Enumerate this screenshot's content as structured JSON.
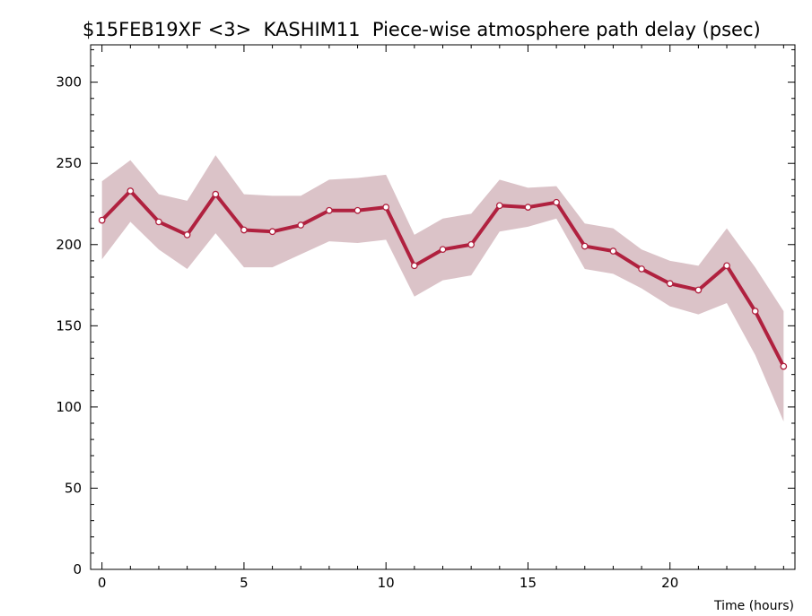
{
  "chart_data": {
    "type": "line",
    "title": "$15FEB19XF <3>  KASHIM11  Piece-wise atmosphere path delay (psec)",
    "xlabel": "Time (hours)",
    "ylabel": "",
    "xlim": [
      -0.4,
      24.4
    ],
    "ylim": [
      0,
      323
    ],
    "x_ticks": [
      0,
      5,
      10,
      15,
      20
    ],
    "y_ticks": [
      0,
      50,
      100,
      150,
      200,
      250,
      300
    ],
    "grid": false,
    "series": [
      {
        "x": [
          0,
          1,
          2,
          3,
          4,
          5,
          6,
          7,
          8,
          9,
          10,
          11,
          12,
          13,
          14,
          15,
          16,
          17,
          18,
          19,
          20,
          21,
          22,
          23,
          24
        ],
        "values": [
          215,
          233,
          214,
          206,
          231,
          209,
          208,
          212,
          221,
          221,
          223,
          187,
          197,
          200,
          224,
          223,
          226,
          199,
          196,
          185,
          176,
          172,
          187,
          159,
          125
        ],
        "upper": [
          239,
          252,
          231,
          227,
          255,
          231,
          230,
          230,
          240,
          241,
          243,
          206,
          216,
          219,
          240,
          235,
          236,
          213,
          210,
          197,
          190,
          187,
          210,
          186,
          159
        ],
        "lower": [
          191,
          214,
          197,
          185,
          207,
          186,
          186,
          194,
          202,
          201,
          203,
          168,
          178,
          181,
          208,
          211,
          216,
          185,
          182,
          173,
          162,
          157,
          164,
          132,
          91
        ]
      }
    ],
    "colors": {
      "line": "#b0213f",
      "band": "#dbc3c8",
      "marker_fill": "#ffffff",
      "axis": "#000000"
    }
  }
}
